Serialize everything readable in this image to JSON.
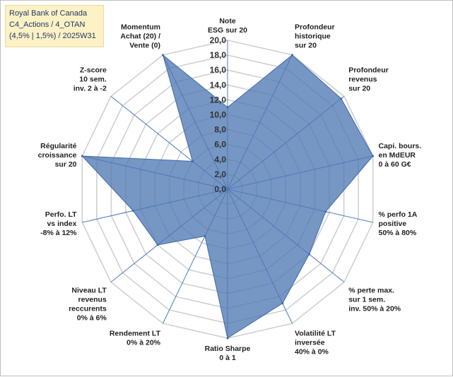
{
  "title_lines": [
    "Royal Bank of Canada",
    "C4_Actions / 4_OTAN",
    "(4,5% | 1,5%) / 2025W31"
  ],
  "chart_data": {
    "type": "radar",
    "rmax": 20,
    "ticks": [
      "0,0",
      "2,0",
      "4,0",
      "6,0",
      "8,0",
      "10,0",
      "12,0",
      "14,0",
      "16,0",
      "18,0",
      "20,0"
    ],
    "tick_values": [
      0,
      2,
      4,
      6,
      8,
      10,
      12,
      14,
      16,
      18,
      20
    ],
    "axes": [
      {
        "lines": [
          "Note",
          "ESG sur 20"
        ]
      },
      {
        "lines": [
          "Profondeur",
          "historique",
          "sur 20"
        ]
      },
      {
        "lines": [
          "Profondeur",
          "revenus",
          "sur 20"
        ]
      },
      {
        "lines": [
          "Capi. bours.",
          "en MdEUR",
          "0 à 60 G€"
        ]
      },
      {
        "lines": [
          "% perfo 1A",
          "positive",
          "50% à 80%"
        ]
      },
      {
        "lines": [
          "% perte max.",
          "sur 1 sem.",
          "inv. 50% à 20%"
        ]
      },
      {
        "lines": [
          "Volatilité LT",
          "inversée",
          "40% à 0%"
        ]
      },
      {
        "lines": [
          "Ratio Sharpe",
          "0 à 1"
        ]
      },
      {
        "lines": [
          "Rendement LT",
          "0% à 20%"
        ]
      },
      {
        "lines": [
          "Niveau LT",
          "revenus",
          "reccurents",
          "0% à 6%"
        ]
      },
      {
        "lines": [
          "Perfo. LT",
          "vs index",
          "-8% à 12%"
        ]
      },
      {
        "lines": [
          "Régularité",
          "croissance",
          "sur 20"
        ]
      },
      {
        "lines": [
          "Z-score",
          "10 sem.",
          "inv. 2 à -2"
        ]
      },
      {
        "lines": [
          "Momentum",
          "Achat (20) /",
          "Vente (0)"
        ]
      }
    ],
    "series": [
      {
        "values": [
          11,
          20,
          19.5,
          20,
          13.5,
          14,
          17,
          20,
          7,
          12,
          13,
          20,
          6,
          20
        ],
        "color": "#4f78b4",
        "fill_opacity": 0.78
      }
    ]
  }
}
